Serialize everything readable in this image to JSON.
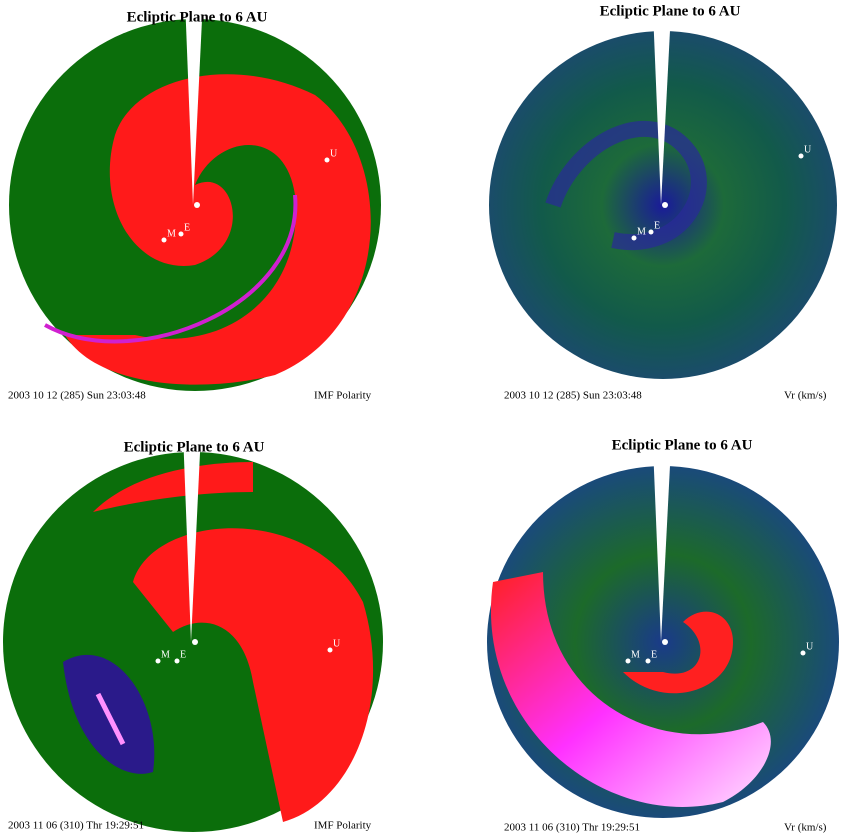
{
  "panels": [
    {
      "title": "Ecliptic Plane to 6 AU",
      "timestamp": "2003 10 12 (285) Sun 23:03:48",
      "quantity": "IMF Polarity",
      "planets": [
        "M",
        "E",
        "U"
      ]
    },
    {
      "title": "Ecliptic Plane to 6 AU",
      "timestamp": "2003 10 12 (285) Sun 23:03:48",
      "quantity": "Vr (km/s)",
      "planets": [
        "M",
        "E",
        "U"
      ]
    },
    {
      "title": "Ecliptic Plane to 6 AU",
      "timestamp": "2003 11 06 (310) Thr 19:29:51",
      "quantity": "IMF Polarity",
      "planets": [
        "M",
        "E",
        "U"
      ]
    },
    {
      "title": "Ecliptic Plane to 6 AU",
      "timestamp": "2003 11 06 (310) Thr 19:29:51",
      "quantity": "Vr (km/s)",
      "planets": [
        "M",
        "E",
        "U"
      ]
    }
  ]
}
